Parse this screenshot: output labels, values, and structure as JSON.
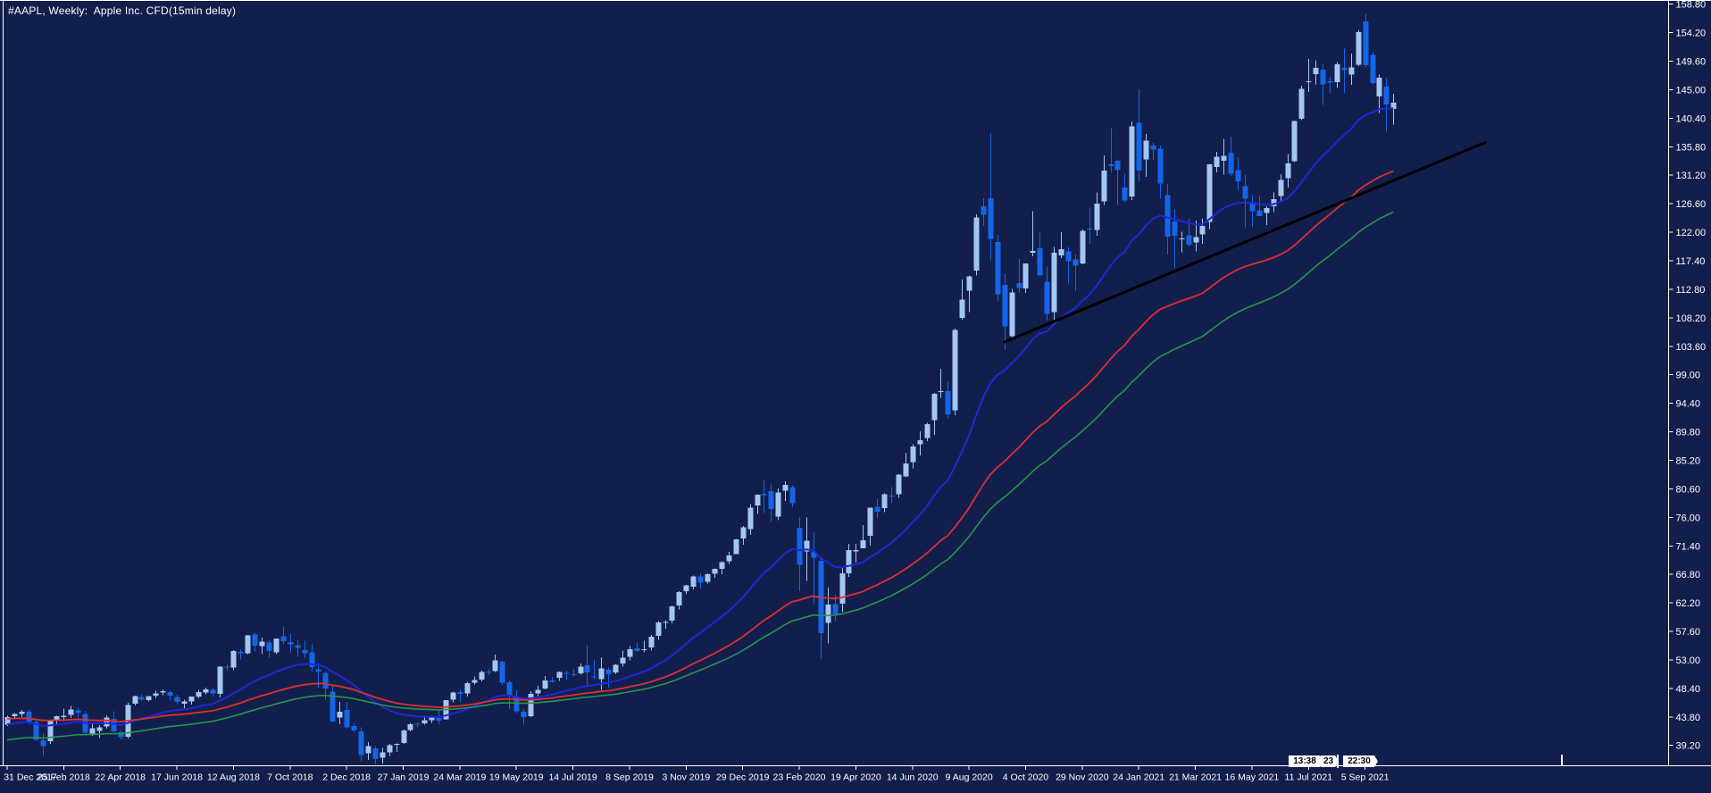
{
  "window_title": "#AAPL, Weekly:  Apple Inc. CFD(15min delay)",
  "colors": {
    "background": "#121F4C",
    "axis_text": "#FFFFFF",
    "border": "#FFFFFF",
    "candle_up": "#A4C6F2",
    "candle_down": "#1565E8",
    "ma_fast": "#2026D8",
    "ma_medium": "#DE2F2F",
    "ma_slow": "#27964A",
    "trendline": "#000000"
  },
  "time_markers": {
    "left": "13:38",
    "middle": "23",
    "right": "22:30"
  },
  "chart_data": {
    "type": "candlestick",
    "title": "#AAPL, Weekly:  Apple Inc. CFD(15min delay)",
    "symbol": "#AAPL",
    "timeframe": "Weekly",
    "grid": false,
    "legend": false,
    "price_axis": {
      "side": "right",
      "max": 158.8,
      "min": 39.2,
      "step": 4.6,
      "labels": [
        "158.80",
        "154.20",
        "149.60",
        "145.00",
        "140.40",
        "135.80",
        "131.20",
        "126.60",
        "122.00",
        "117.40",
        "112.80",
        "108.20",
        "103.60",
        "99.00",
        "94.40",
        "89.80",
        "85.20",
        "80.60",
        "76.00",
        "71.40",
        "66.80",
        "62.20",
        "57.60",
        "53.00",
        "48.40",
        "43.80",
        "39.20"
      ]
    },
    "date_axis": {
      "candles_per_tick": 8,
      "labels": [
        "31 Dec 2017",
        "25 Feb 2018",
        "22 Apr 2018",
        "17 Jun 2018",
        "12 Aug 2018",
        "7 Oct 2018",
        "2 Dec 2018",
        "27 Jan 2019",
        "24 Mar 2019",
        "19 May 2019",
        "14 Jul 2019",
        "8 Sep 2019",
        "3 Nov 2019",
        "29 Dec 2019",
        "23 Feb 2020",
        "19 Apr 2020",
        "14 Jun 2020",
        "9 Aug 2020",
        "4 Oct 2020",
        "29 Nov 2020",
        "24 Jan 2021",
        "21 Mar 2021",
        "16 May 2021",
        "11 Jul 2021",
        "5 Sep 2021"
      ]
    },
    "candles": [
      [
        42.54,
        43.98,
        42.31,
        43.75
      ],
      [
        43.9,
        44.45,
        43.52,
        44.27
      ],
      [
        44.3,
        44.89,
        43.8,
        44.62
      ],
      [
        44.66,
        45.02,
        42.63,
        42.9
      ],
      [
        42.95,
        43.24,
        39.96,
        40.12
      ],
      [
        40.0,
        41.16,
        37.56,
        39.1
      ],
      [
        39.9,
        43.26,
        39.44,
        43.1
      ],
      [
        43.2,
        44.02,
        42.55,
        43.9
      ],
      [
        43.75,
        45.15,
        43.11,
        44.0
      ],
      [
        44.1,
        45.54,
        43.61,
        45.0
      ],
      [
        44.88,
        45.3,
        43.7,
        44.51
      ],
      [
        44.3,
        44.78,
        40.84,
        41.24
      ],
      [
        41.1,
        42.91,
        40.77,
        41.94
      ],
      [
        41.55,
        42.48,
        40.36,
        42.1
      ],
      [
        42.25,
        44.06,
        41.93,
        43.68
      ],
      [
        43.5,
        44.73,
        41.29,
        41.43
      ],
      [
        41.3,
        41.7,
        40.16,
        40.51
      ],
      [
        40.6,
        46.06,
        40.34,
        45.72
      ],
      [
        45.9,
        47.21,
        45.67,
        47.15
      ],
      [
        47.0,
        47.43,
        46.26,
        46.58
      ],
      [
        46.5,
        47.19,
        46.31,
        47.15
      ],
      [
        47.2,
        48.03,
        46.84,
        47.56
      ],
      [
        47.7,
        48.22,
        47.33,
        47.92
      ],
      [
        47.8,
        48.11,
        46.42,
        47.2
      ],
      [
        47.0,
        47.36,
        45.86,
        46.23
      ],
      [
        45.95,
        46.6,
        45.18,
        46.28
      ],
      [
        46.3,
        47.12,
        45.77,
        47.06
      ],
      [
        47.1,
        48.18,
        46.81,
        47.82
      ],
      [
        47.7,
        48.55,
        47.41,
        48.26
      ],
      [
        48.2,
        48.45,
        47.12,
        47.6
      ],
      [
        47.55,
        52.0,
        46.91,
        51.88
      ],
      [
        51.9,
        52.28,
        51.17,
        51.88
      ],
      [
        51.8,
        54.56,
        51.35,
        54.4
      ],
      [
        54.3,
        54.68,
        53.05,
        54.04
      ],
      [
        54.1,
        57.06,
        53.86,
        56.98
      ],
      [
        57.1,
        57.42,
        54.36,
        55.33
      ],
      [
        55.2,
        56.61,
        53.96,
        55.96
      ],
      [
        55.8,
        56.18,
        53.46,
        54.47
      ],
      [
        54.2,
        56.46,
        53.95,
        56.44
      ],
      [
        56.8,
        58.37,
        55.54,
        56.0
      ],
      [
        55.9,
        57.24,
        54.11,
        55.53
      ],
      [
        55.4,
        56.24,
        53.55,
        54.94
      ],
      [
        54.6,
        56.1,
        53.31,
        54.1
      ],
      [
        54.2,
        55.59,
        51.13,
        51.87
      ],
      [
        51.5,
        52.51,
        48.56,
        51.11
      ],
      [
        50.9,
        51.1,
        46.61,
        48.38
      ],
      [
        47.9,
        48.71,
        42.96,
        43.07
      ],
      [
        43.7,
        46.24,
        42.61,
        44.65
      ],
      [
        44.91,
        46.2,
        42.0,
        42.12
      ],
      [
        42.3,
        42.75,
        41.32,
        41.64
      ],
      [
        41.5,
        42.14,
        36.65,
        37.68
      ],
      [
        37.9,
        39.71,
        36.83,
        39.06
      ],
      [
        38.72,
        39.1,
        36.2,
        36.98
      ],
      [
        37.2,
        38.77,
        36.27,
        38.07
      ],
      [
        38.1,
        39.47,
        37.51,
        39.21
      ],
      [
        39.3,
        39.53,
        38.13,
        39.44
      ],
      [
        39.6,
        41.74,
        39.46,
        41.63
      ],
      [
        41.7,
        42.87,
        41.48,
        42.6
      ],
      [
        42.7,
        42.93,
        42.11,
        42.6
      ],
      [
        42.75,
        43.97,
        42.56,
        43.24
      ],
      [
        43.3,
        43.95,
        42.86,
        43.74
      ],
      [
        43.6,
        45.0,
        42.57,
        43.23
      ],
      [
        43.4,
        46.53,
        43.37,
        46.53
      ],
      [
        46.6,
        47.9,
        46.15,
        47.76
      ],
      [
        47.8,
        48.22,
        46.14,
        47.49
      ],
      [
        47.6,
        49.43,
        47.1,
        49.25
      ],
      [
        49.3,
        50.31,
        49.05,
        49.72
      ],
      [
        49.8,
        51.24,
        49.56,
        51.08
      ],
      [
        51.1,
        51.49,
        50.53,
        51.08
      ],
      [
        51.2,
        53.83,
        51.07,
        52.94
      ],
      [
        52.7,
        52.86,
        48.93,
        49.29
      ],
      [
        49.4,
        49.72,
        45.06,
        47.25
      ],
      [
        47.0,
        48.12,
        44.45,
        44.74
      ],
      [
        44.6,
        45.15,
        42.57,
        43.77
      ],
      [
        43.9,
        47.98,
        43.75,
        47.54
      ],
      [
        47.6,
        48.84,
        47.13,
        48.19
      ],
      [
        48.4,
        50.39,
        48.27,
        49.69
      ],
      [
        49.7,
        50.25,
        49.34,
        49.48
      ],
      [
        50.1,
        51.11,
        49.6,
        51.06
      ],
      [
        50.9,
        51.27,
        49.74,
        50.82
      ],
      [
        50.7,
        51.53,
        50.34,
        50.65
      ],
      [
        50.8,
        52.44,
        50.58,
        51.94
      ],
      [
        52.1,
        55.34,
        48.92,
        51.0
      ],
      [
        50.3,
        53.01,
        49.88,
        50.25
      ],
      [
        49.9,
        53.39,
        48.15,
        51.62
      ],
      [
        51.4,
        51.8,
        48.56,
        50.66
      ],
      [
        51.0,
        52.34,
        50.72,
        52.19
      ],
      [
        52.4,
        54.51,
        51.94,
        53.32
      ],
      [
        53.5,
        55.2,
        52.93,
        54.69
      ],
      [
        54.9,
        55.71,
        54.26,
        54.43
      ],
      [
        54.6,
        56.1,
        54.21,
        54.7
      ],
      [
        55.0,
        57.06,
        54.48,
        56.75
      ],
      [
        56.9,
        59.25,
        56.26,
        59.05
      ],
      [
        59.1,
        59.41,
        58.07,
        59.1
      ],
      [
        59.3,
        61.8,
        58.9,
        61.65
      ],
      [
        61.8,
        64.09,
        61.15,
        63.96
      ],
      [
        64.1,
        65.12,
        63.61,
        65.04
      ],
      [
        64.8,
        66.64,
        64.35,
        66.44
      ],
      [
        66.5,
        66.97,
        64.57,
        65.45
      ],
      [
        65.6,
        67.0,
        65.3,
        66.81
      ],
      [
        66.9,
        67.75,
        66.23,
        67.68
      ],
      [
        67.7,
        68.95,
        66.83,
        68.79
      ],
      [
        68.9,
        70.44,
        68.5,
        69.86
      ],
      [
        70.1,
        72.5,
        70.09,
        72.45
      ],
      [
        72.6,
        74.6,
        71.58,
        74.36
      ],
      [
        74.1,
        78.17,
        73.19,
        77.58
      ],
      [
        77.9,
        79.73,
        76.55,
        79.68
      ],
      [
        79.8,
        81.96,
        76.72,
        79.58
      ],
      [
        80.2,
        81.32,
        75.25,
        77.38
      ],
      [
        76.1,
        80.65,
        75.56,
        80.01
      ],
      [
        80.3,
        81.81,
        78.65,
        81.24
      ],
      [
        80.9,
        81.17,
        77.63,
        78.26
      ],
      [
        74.3,
        76.04,
        64.09,
        68.34
      ],
      [
        70.5,
        76.0,
        65.75,
        72.26
      ],
      [
        70.5,
        73.63,
        62.0,
        69.49
      ],
      [
        69.0,
        69.52,
        53.15,
        57.31
      ],
      [
        59.0,
        64.67,
        55.66,
        61.94
      ],
      [
        62.0,
        63.6,
        59.22,
        60.35
      ],
      [
        62.1,
        67.93,
        60.7,
        66.99
      ],
      [
        67.0,
        71.76,
        66.36,
        70.7
      ],
      [
        70.5,
        71.74,
        68.71,
        70.74
      ],
      [
        71.0,
        74.75,
        70.97,
        72.27
      ],
      [
        73.0,
        77.59,
        71.46,
        77.53
      ],
      [
        77.7,
        78.99,
        75.8,
        76.93
      ],
      [
        77.5,
        79.88,
        76.81,
        79.72
      ],
      [
        79.5,
        80.86,
        78.27,
        79.49
      ],
      [
        79.7,
        83.0,
        79.11,
        82.88
      ],
      [
        82.6,
        86.4,
        82.43,
        84.7
      ],
      [
        84.9,
        87.76,
        83.87,
        87.43
      ],
      [
        87.8,
        89.86,
        85.98,
        88.41
      ],
      [
        88.8,
        91.25,
        88.29,
        91.03
      ],
      [
        91.7,
        96.06,
        89.31,
        95.92
      ],
      [
        96.3,
        99.96,
        95.26,
        96.33
      ],
      [
        96.4,
        97.97,
        92.0,
        92.61
      ],
      [
        93.3,
        106.42,
        92.46,
        106.26
      ],
      [
        108.2,
        114.41,
        107.89,
        111.11
      ],
      [
        112.6,
        115.0,
        109.11,
        114.91
      ],
      [
        115.8,
        124.87,
        115.01,
        124.37
      ],
      [
        126.2,
        127.49,
        123.05,
        124.81
      ],
      [
        127.5,
        137.98,
        117.51,
        120.96
      ],
      [
        120.4,
        121.55,
        110.89,
        112.0
      ],
      [
        113.5,
        115.37,
        103.1,
        106.84
      ],
      [
        105.2,
        112.86,
        104.83,
        112.28
      ],
      [
        113.8,
        117.72,
        112.22,
        113.02
      ],
      [
        112.9,
        117.0,
        112.25,
        116.97
      ],
      [
        118.7,
        125.39,
        118.15,
        119.02
      ],
      [
        119.4,
        121.99,
        115.04,
        115.05
      ],
      [
        114.0,
        116.55,
        107.72,
        108.86
      ],
      [
        109.1,
        119.62,
        107.32,
        118.69
      ],
      [
        118.3,
        121.99,
        117.87,
        119.26
      ],
      [
        118.9,
        119.67,
        113.75,
        117.34
      ],
      [
        117.6,
        118.41,
        112.59,
        116.59
      ],
      [
        116.97,
        122.45,
        116.81,
        122.25
      ],
      [
        122.6,
        125.95,
        120.15,
        122.41
      ],
      [
        122.4,
        128.39,
        121.46,
        126.66
      ],
      [
        127.0,
        134.41,
        126.38,
        131.97
      ],
      [
        133.0,
        138.79,
        131.72,
        132.69
      ],
      [
        133.52,
        133.61,
        126.38,
        132.05
      ],
      [
        129.2,
        131.45,
        126.86,
        127.14
      ],
      [
        127.8,
        139.85,
        127.21,
        139.07
      ],
      [
        139.7,
        145.09,
        130.21,
        131.96
      ],
      [
        133.75,
        137.88,
        130.93,
        136.76
      ],
      [
        136.0,
        136.39,
        133.69,
        135.37
      ],
      [
        135.5,
        136.01,
        127.41,
        129.87
      ],
      [
        128.0,
        129.72,
        118.39,
        121.26
      ],
      [
        123.75,
        125.71,
        116.21,
        121.42
      ],
      [
        120.9,
        122.06,
        118.79,
        121.03
      ],
      [
        121.5,
        124.18,
        119.68,
        119.99
      ],
      [
        120.35,
        123.87,
        118.92,
        121.21
      ],
      [
        121.65,
        124.18,
        120.16,
        123.0
      ],
      [
        123.66,
        133.04,
        122.49,
        133.0
      ],
      [
        132.52,
        135.0,
        131.66,
        134.16
      ],
      [
        133.51,
        137.07,
        131.3,
        134.32
      ],
      [
        134.83,
        137.41,
        131.06,
        131.46
      ],
      [
        132.04,
        134.07,
        128.8,
        130.21
      ],
      [
        129.41,
        131.26,
        122.77,
        127.45
      ],
      [
        126.82,
        128.0,
        122.86,
        125.43
      ],
      [
        125.57,
        127.94,
        124.78,
        124.61
      ],
      [
        125.08,
        126.16,
        123.13,
        125.89
      ],
      [
        126.17,
        128.46,
        125.28,
        127.35
      ],
      [
        127.82,
        131.39,
        126.85,
        130.46
      ],
      [
        130.71,
        134.64,
        129.21,
        133.11
      ],
      [
        133.46,
        140.0,
        133.35,
        139.96
      ],
      [
        140.34,
        145.65,
        140.07,
        145.11
      ],
      [
        146.21,
        150.0,
        144.63,
        146.39
      ],
      [
        147.55,
        149.76,
        145.88,
        148.56
      ],
      [
        148.27,
        149.21,
        142.54,
        145.86
      ],
      [
        146.36,
        147.11,
        144.5,
        146.14
      ],
      [
        146.2,
        149.44,
        145.3,
        149.1
      ],
      [
        148.54,
        151.68,
        144.5,
        148.19
      ],
      [
        147.44,
        150.86,
        145.81,
        148.6
      ],
      [
        149.0,
        154.63,
        148.8,
        154.3
      ],
      [
        156.01,
        157.26,
        148.7,
        148.97
      ],
      [
        150.63,
        151.07,
        145.76,
        146.06
      ],
      [
        143.93,
        147.47,
        141.27,
        146.92
      ],
      [
        145.47,
        146.92,
        138.27,
        142.65
      ],
      [
        141.9,
        144.38,
        139.36,
        142.9
      ]
    ],
    "ma_lines": [
      {
        "name": "fast-ma",
        "color": "#2026D8",
        "period": 21,
        "seed": 42.5,
        "width": 2.0
      },
      {
        "name": "medium-ma",
        "color": "#DE2F2F",
        "period": 48,
        "seed": 43.5,
        "width": 1.8
      },
      {
        "name": "slow-ma",
        "color": "#27964A",
        "period": 65,
        "seed": 40.0,
        "width": 1.6
      }
    ],
    "trendline": {
      "from_index": 141,
      "from_price": 104.3,
      "to_index": 209,
      "to_price": 136.5,
      "color": "#000000",
      "width": 3
    }
  }
}
